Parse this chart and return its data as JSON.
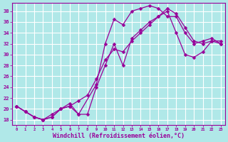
{
  "title": "",
  "xlabel": "Windchill (Refroidissement éolien,°C)",
  "ylabel": "",
  "bg_color": "#b0e8e8",
  "grid_color": "#ffffff",
  "line_color": "#990099",
  "xlim": [
    -0.5,
    23.5
  ],
  "ylim": [
    17,
    39.5
  ],
  "yticks": [
    18,
    20,
    22,
    24,
    26,
    28,
    30,
    32,
    34,
    36,
    38
  ],
  "xticks": [
    0,
    1,
    2,
    3,
    4,
    5,
    6,
    7,
    8,
    9,
    10,
    11,
    12,
    13,
    14,
    15,
    16,
    17,
    18,
    19,
    20,
    21,
    22,
    23
  ],
  "curve1_x": [
    0,
    1,
    2,
    3,
    4,
    5,
    6,
    7,
    8,
    9,
    10,
    11,
    12,
    13,
    14,
    15,
    16,
    17,
    18,
    19,
    20,
    21,
    22,
    23
  ],
  "curve1_y": [
    20.5,
    19.5,
    18.5,
    18.0,
    18.5,
    20.0,
    20.5,
    19.0,
    19.0,
    24.0,
    28.0,
    32.0,
    28.0,
    33.0,
    34.5,
    36.0,
    37.0,
    38.0,
    34.0,
    30.0,
    29.5,
    30.5,
    32.5,
    32.5
  ],
  "curve2_x": [
    0,
    1,
    2,
    3,
    4,
    5,
    6,
    7,
    8,
    9,
    10,
    11,
    12,
    13,
    14,
    15,
    16,
    17,
    18,
    19,
    20,
    21,
    22,
    23
  ],
  "curve2_y": [
    20.5,
    19.5,
    18.5,
    18.0,
    19.0,
    20.0,
    20.5,
    21.5,
    22.5,
    25.5,
    29.0,
    31.0,
    30.5,
    32.5,
    34.0,
    35.5,
    37.0,
    38.5,
    37.5,
    35.0,
    32.5,
    32.0,
    32.5,
    32.0
  ],
  "curve3_x": [
    0,
    1,
    2,
    3,
    4,
    5,
    6,
    7,
    9,
    10,
    11,
    12,
    13,
    14,
    15,
    16,
    17,
    18,
    19,
    20,
    21,
    22,
    23
  ],
  "curve3_y": [
    20.5,
    19.5,
    18.5,
    18.0,
    18.5,
    20.0,
    21.0,
    19.0,
    24.5,
    32.0,
    36.5,
    35.5,
    38.0,
    38.5,
    39.0,
    38.5,
    37.0,
    37.0,
    34.0,
    32.0,
    32.5,
    33.0,
    32.0
  ]
}
